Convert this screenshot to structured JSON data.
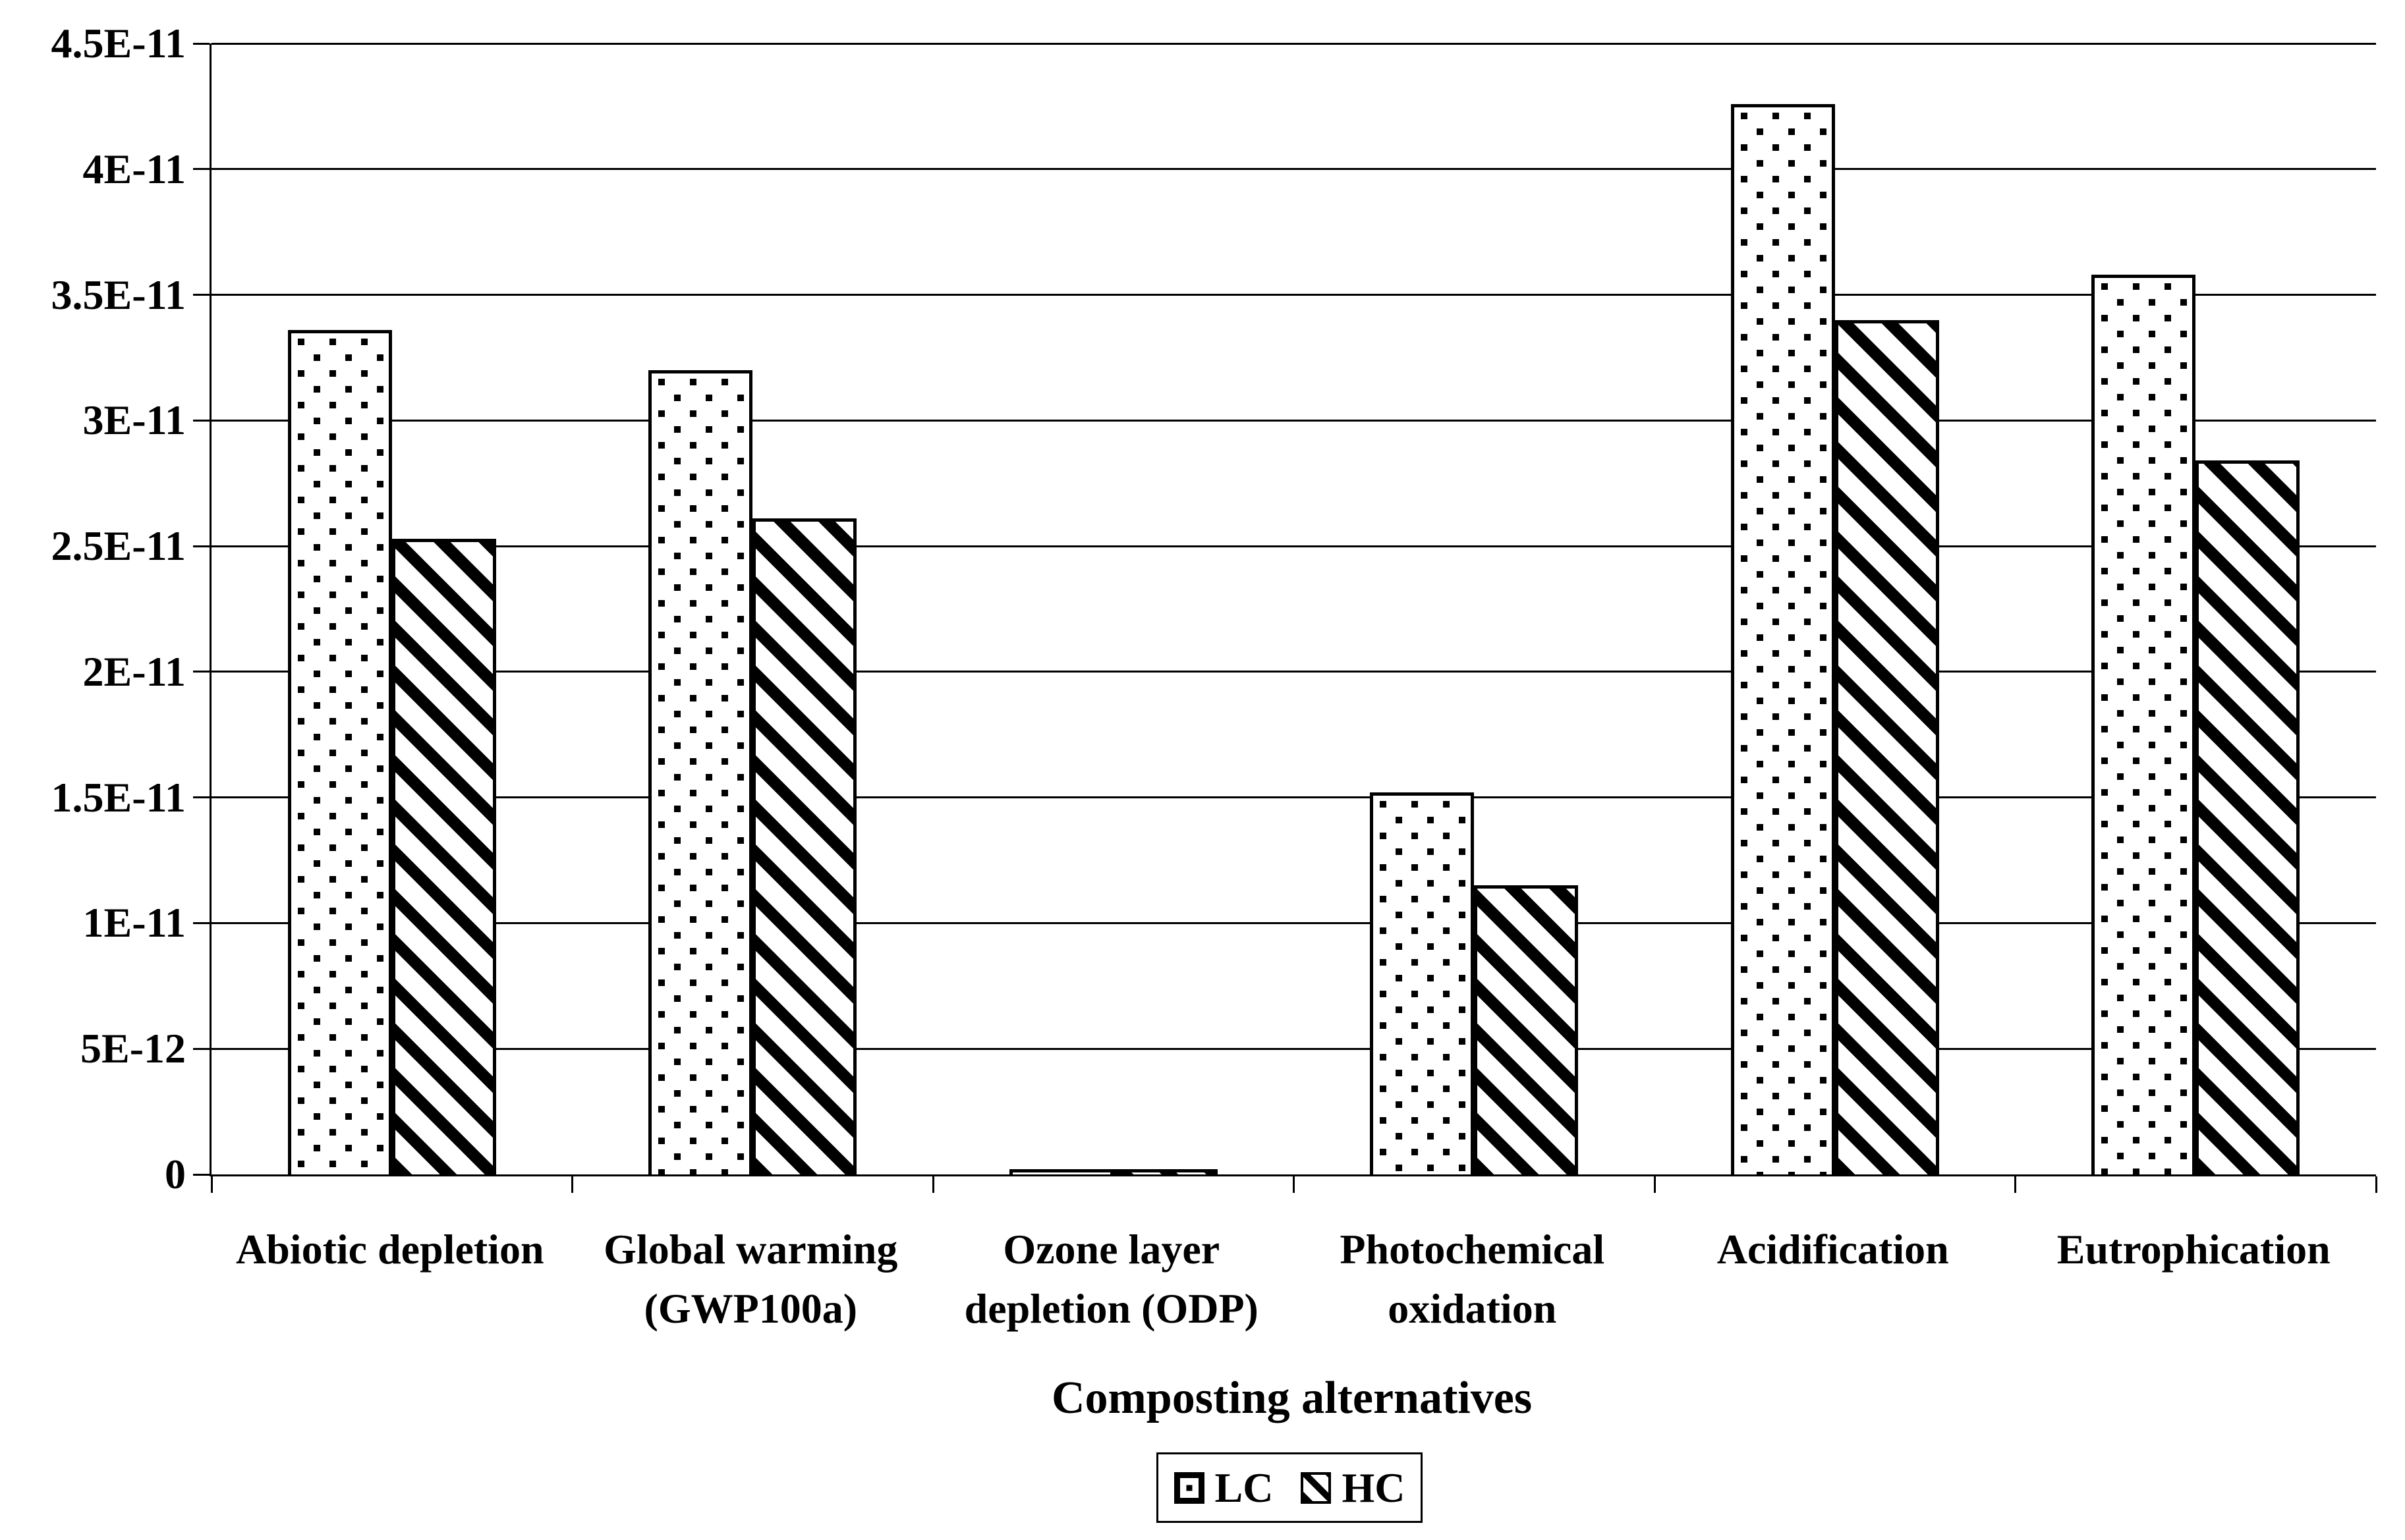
{
  "chart_data": {
    "type": "bar",
    "title": "",
    "xlabel": "Composting alternatives",
    "ylabel": "",
    "categories": [
      "Abiotic depletion",
      "Global warming (GWP100a)",
      "Ozone layer depletion (ODP)",
      "Photochemical oxidation",
      "Acidification",
      "Eutrophication"
    ],
    "categories_wrapped": [
      [
        "Abiotic depletion"
      ],
      [
        "Global warming",
        "(GWP100a)"
      ],
      [
        "Ozone layer",
        "depletion (ODP)"
      ],
      [
        "Photochemical",
        "oxidation"
      ],
      [
        "Acidification"
      ],
      [
        "Eutrophication"
      ]
    ],
    "series": [
      {
        "name": "LC",
        "pattern": "dots",
        "values": [
          3.36e-11,
          3.2e-11,
          2e-13,
          1.52e-11,
          4.26e-11,
          3.58e-11
        ]
      },
      {
        "name": "HC",
        "pattern": "diagonal-stripes",
        "values": [
          2.53e-11,
          2.61e-11,
          2e-13,
          1.15e-11,
          3.4e-11,
          2.84e-11
        ]
      }
    ],
    "y_ticks": [
      "0",
      "5E-12",
      "1E-11",
      "1.5E-11",
      "2E-11",
      "2.5E-11",
      "3E-11",
      "3.5E-11",
      "4E-11",
      "4.5E-11"
    ],
    "ylim": [
      0,
      4.5e-11
    ],
    "grid": true,
    "legend_position": "bottom",
    "colors": {
      "foreground": "#000000",
      "background": "#ffffff"
    }
  }
}
